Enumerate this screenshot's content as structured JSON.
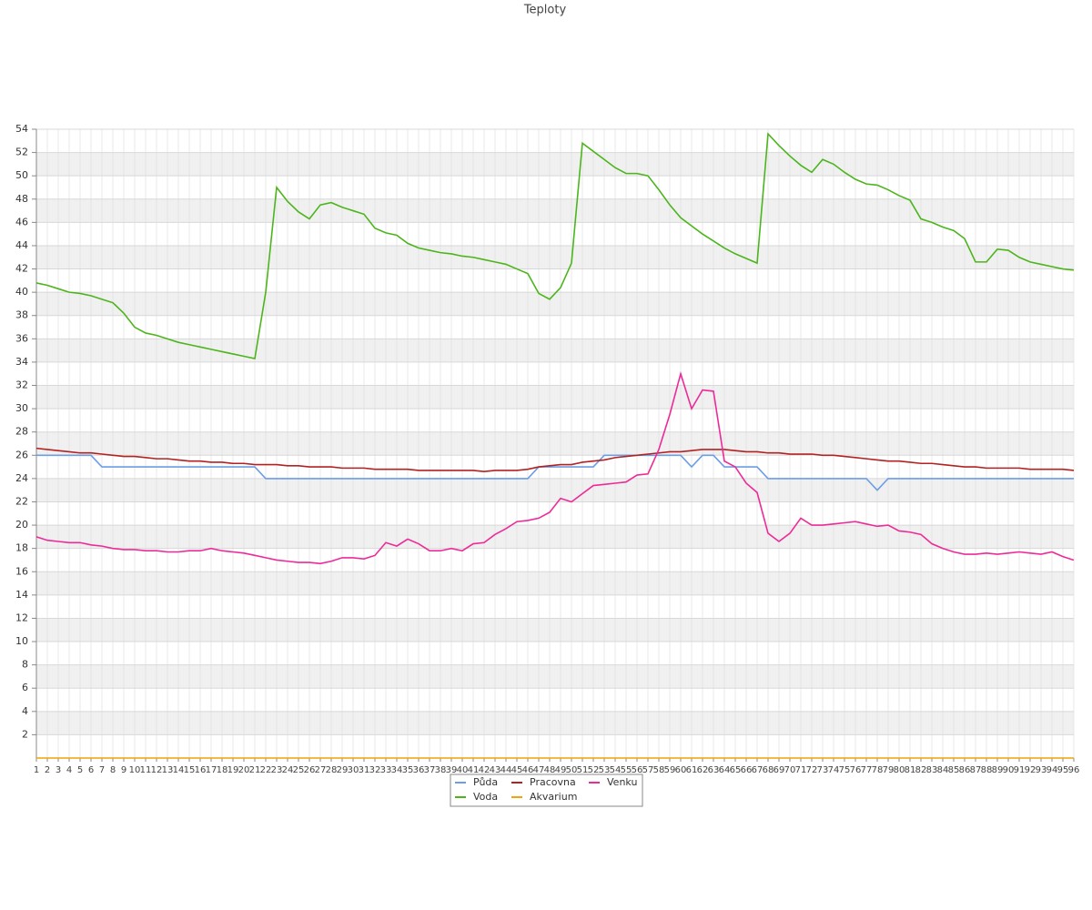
{
  "chart_data": {
    "type": "line",
    "title": "Teploty",
    "categories": [
      1,
      2,
      3,
      4,
      5,
      6,
      7,
      8,
      9,
      10,
      11,
      12,
      13,
      14,
      15,
      16,
      17,
      18,
      19,
      20,
      21,
      22,
      23,
      24,
      25,
      26,
      27,
      28,
      29,
      30,
      31,
      32,
      33,
      34,
      35,
      36,
      37,
      38,
      39,
      40,
      41,
      42,
      43,
      44,
      45,
      46,
      47,
      48,
      49,
      50,
      51,
      52,
      53,
      54,
      55,
      56,
      57,
      58,
      59,
      60,
      61,
      62,
      63,
      64,
      65,
      66,
      67,
      68,
      69,
      70,
      71,
      72,
      73,
      74,
      75,
      76,
      77,
      78,
      79,
      80,
      81,
      82,
      83,
      84,
      85,
      86,
      87,
      88,
      89,
      90,
      91,
      92,
      93,
      94,
      95,
      96
    ],
    "ylim": [
      0,
      54
    ],
    "yticks": [
      2,
      4,
      6,
      8,
      10,
      12,
      14,
      16,
      18,
      20,
      22,
      24,
      26,
      28,
      30,
      32,
      34,
      36,
      38,
      40,
      42,
      44,
      46,
      48,
      50,
      52,
      54
    ],
    "grid": true,
    "legend": "bottom",
    "series": [
      {
        "name": "Půda",
        "color": "#6c9de6",
        "values": [
          26,
          26,
          26,
          26,
          26,
          26,
          25,
          25,
          25,
          25,
          25,
          25,
          25,
          25,
          25,
          25,
          25,
          25,
          25,
          25,
          25,
          24,
          24,
          24,
          24,
          24,
          24,
          24,
          24,
          24,
          24,
          24,
          24,
          24,
          24,
          24,
          24,
          24,
          24,
          24,
          24,
          24,
          24,
          24,
          24,
          24,
          25,
          25,
          25,
          25,
          25,
          25,
          26,
          26,
          26,
          26,
          26,
          26,
          26,
          26,
          25,
          26,
          26,
          25,
          25,
          25,
          25,
          24,
          24,
          24,
          24,
          24,
          24,
          24,
          24,
          24,
          24,
          23,
          24,
          24,
          24,
          24,
          24,
          24,
          24,
          24,
          24,
          24,
          24,
          24,
          24,
          24,
          24,
          24,
          24,
          24
        ]
      },
      {
        "name": "Pracovna",
        "color": "#b22222",
        "values": [
          26.6,
          26.5,
          26.4,
          26.3,
          26.2,
          26.2,
          26.1,
          26.0,
          25.9,
          25.9,
          25.8,
          25.7,
          25.7,
          25.6,
          25.5,
          25.5,
          25.4,
          25.4,
          25.3,
          25.3,
          25.2,
          25.2,
          25.2,
          25.1,
          25.1,
          25.0,
          25.0,
          25.0,
          24.9,
          24.9,
          24.9,
          24.8,
          24.8,
          24.8,
          24.8,
          24.7,
          24.7,
          24.7,
          24.7,
          24.7,
          24.7,
          24.6,
          24.7,
          24.7,
          24.7,
          24.8,
          25.0,
          25.1,
          25.2,
          25.2,
          25.4,
          25.5,
          25.6,
          25.8,
          25.9,
          26.0,
          26.1,
          26.2,
          26.3,
          26.3,
          26.4,
          26.5,
          26.5,
          26.5,
          26.4,
          26.3,
          26.3,
          26.2,
          26.2,
          26.1,
          26.1,
          26.1,
          26.0,
          26.0,
          25.9,
          25.8,
          25.7,
          25.6,
          25.5,
          25.5,
          25.4,
          25.3,
          25.3,
          25.2,
          25.1,
          25.0,
          25.0,
          24.9,
          24.9,
          24.9,
          24.9,
          24.8,
          24.8,
          24.8,
          24.8,
          24.7
        ]
      },
      {
        "name": "Venku",
        "color": "#ee2a98",
        "values": [
          19.0,
          18.7,
          18.6,
          18.5,
          18.5,
          18.3,
          18.2,
          18.0,
          17.9,
          17.9,
          17.8,
          17.8,
          17.7,
          17.7,
          17.8,
          17.8,
          18.0,
          17.8,
          17.7,
          17.6,
          17.4,
          17.2,
          17.0,
          16.9,
          16.8,
          16.8,
          16.7,
          16.9,
          17.2,
          17.2,
          17.1,
          17.4,
          18.5,
          18.2,
          18.8,
          18.4,
          17.8,
          17.8,
          18.0,
          17.8,
          18.4,
          18.5,
          19.2,
          19.7,
          20.3,
          20.4,
          20.6,
          21.1,
          22.3,
          22.0,
          22.7,
          23.4,
          23.5,
          23.6,
          23.7,
          24.3,
          24.4,
          26.5,
          29.5,
          33.0,
          30.0,
          31.6,
          31.5,
          25.5,
          25.0,
          23.6,
          22.8,
          19.3,
          18.6,
          19.3,
          20.6,
          20.0,
          20.0,
          20.1,
          20.2,
          20.3,
          20.1,
          19.9,
          20.0,
          19.5,
          19.4,
          19.2,
          18.4,
          18.0,
          17.7,
          17.5,
          17.5,
          17.6,
          17.5,
          17.6,
          17.7,
          17.6,
          17.5,
          17.7,
          17.3,
          17.0
        ]
      },
      {
        "name": "Voda",
        "color": "#4cb51c",
        "values": [
          40.8,
          40.6,
          40.3,
          40.0,
          39.9,
          39.7,
          39.4,
          39.1,
          38.2,
          37.0,
          36.5,
          36.3,
          36.0,
          35.7,
          35.5,
          35.3,
          35.1,
          34.9,
          34.7,
          34.5,
          34.3,
          40.0,
          49.0,
          47.8,
          46.9,
          46.3,
          47.5,
          47.7,
          47.3,
          47.0,
          46.7,
          45.5,
          45.1,
          44.9,
          44.2,
          43.8,
          43.6,
          43.4,
          43.3,
          43.1,
          43.0,
          42.8,
          42.6,
          42.4,
          42.0,
          41.6,
          39.9,
          39.4,
          40.4,
          42.5,
          52.8,
          52.1,
          51.4,
          50.7,
          50.2,
          50.2,
          50.0,
          48.8,
          47.5,
          46.4,
          45.7,
          45.0,
          44.4,
          43.8,
          43.3,
          42.9,
          42.5,
          53.6,
          52.6,
          51.7,
          50.9,
          50.3,
          51.4,
          51.0,
          50.3,
          49.7,
          49.3,
          49.2,
          48.8,
          48.3,
          47.9,
          46.3,
          46.0,
          45.6,
          45.3,
          44.6,
          42.6,
          42.6,
          43.7,
          43.6,
          43.0,
          42.6,
          42.4,
          42.2,
          42.0,
          41.9
        ]
      },
      {
        "name": "Akvarium",
        "color": "#f0a30a",
        "values": [
          0,
          0,
          0,
          0,
          0,
          0,
          0,
          0,
          0,
          0,
          0,
          0,
          0,
          0,
          0,
          0,
          0,
          0,
          0,
          0,
          0,
          0,
          0,
          0,
          0,
          0,
          0,
          0,
          0,
          0,
          0,
          0,
          0,
          0,
          0,
          0,
          0,
          0,
          0,
          0,
          0,
          0,
          0,
          0,
          0,
          0,
          0,
          0,
          0,
          0,
          0,
          0,
          0,
          0,
          0,
          0,
          0,
          0,
          0,
          0,
          0,
          0,
          0,
          0,
          0,
          0,
          0,
          0,
          0,
          0,
          0,
          0,
          0,
          0,
          0,
          0,
          0,
          0,
          0,
          0,
          0,
          0,
          0,
          0,
          0,
          0,
          0,
          0,
          0,
          0,
          0,
          0,
          0,
          0,
          0,
          0
        ]
      }
    ]
  }
}
